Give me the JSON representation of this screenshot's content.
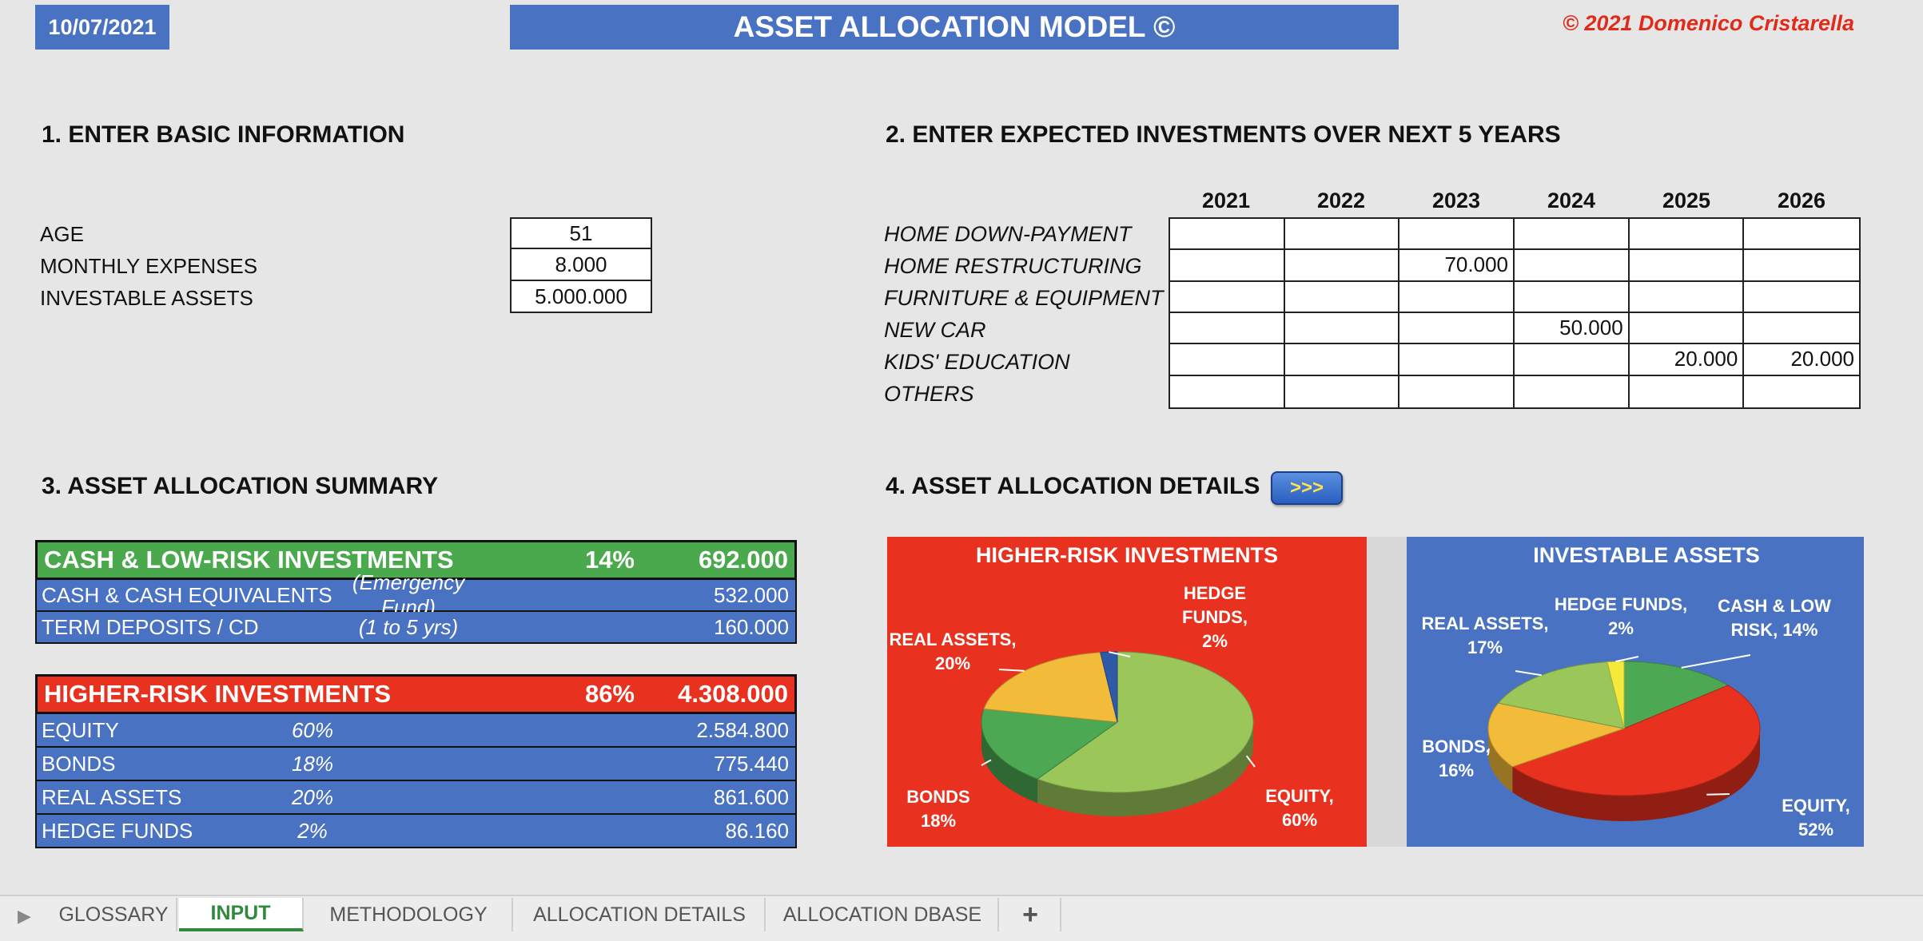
{
  "header": {
    "date": "10/07/2021",
    "title": "ASSET ALLOCATION MODEL ©",
    "copyright": "© 2021 Domenico Cristarella"
  },
  "section1": {
    "title": "1. ENTER BASIC INFORMATION",
    "fields": [
      {
        "label": "AGE",
        "value": "51"
      },
      {
        "label": "MONTHLY EXPENSES",
        "value": "8.000"
      },
      {
        "label": "INVESTABLE ASSETS",
        "value": "5.000.000"
      }
    ]
  },
  "section2": {
    "title": "2. ENTER EXPECTED INVESTMENTS OVER NEXT 5 YEARS",
    "years": [
      "2021",
      "2022",
      "2023",
      "2024",
      "2025",
      "2026"
    ],
    "rows": [
      {
        "label": "HOME DOWN-PAYMENT",
        "values": [
          "",
          "",
          "",
          "",
          "",
          ""
        ]
      },
      {
        "label": "HOME RESTRUCTURING",
        "values": [
          "",
          "",
          "70.000",
          "",
          "",
          ""
        ]
      },
      {
        "label": "FURNITURE & EQUIPMENT",
        "values": [
          "",
          "",
          "",
          "",
          "",
          ""
        ]
      },
      {
        "label": "NEW CAR",
        "values": [
          "",
          "",
          "",
          "50.000",
          "",
          ""
        ]
      },
      {
        "label": "KIDS' EDUCATION",
        "values": [
          "",
          "",
          "",
          "",
          "20.000",
          "20.000"
        ]
      },
      {
        "label": "OTHERS",
        "values": [
          "",
          "",
          "",
          "",
          "",
          ""
        ]
      }
    ]
  },
  "section3": {
    "title": "3.  ASSET ALLOCATION SUMMARY",
    "low_risk": {
      "label": "CASH & LOW-RISK INVESTMENTS",
      "pct": "14%",
      "amount": "692.000",
      "rows": [
        {
          "label": "CASH & CASH EQUIVALENTS",
          "note": "(Emergency Fund)",
          "amount": "532.000"
        },
        {
          "label": "TERM DEPOSITS / CD",
          "note": "(1 to 5 yrs)",
          "amount": "160.000"
        }
      ]
    },
    "high_risk": {
      "label": "HIGHER-RISK INVESTMENTS",
      "pct": "86%",
      "amount": "4.308.000",
      "rows": [
        {
          "label": "EQUITY",
          "note": "60%",
          "amount": "2.584.800"
        },
        {
          "label": "BONDS",
          "note": "18%",
          "amount": "775.440"
        },
        {
          "label": "REAL ASSETS",
          "note": "20%",
          "amount": "861.600"
        },
        {
          "label": "HEDGE FUNDS",
          "note": "2%",
          "amount": "86.160"
        }
      ]
    }
  },
  "section4": {
    "title": "4.  ASSET ALLOCATION DETAILS",
    "button_label": ">>>"
  },
  "chart_data": [
    {
      "type": "pie",
      "title": "HIGHER-RISK INVESTMENTS",
      "slices": [
        {
          "name": "EQUITY",
          "value": 60,
          "label": "EQUITY,|60%",
          "color": "#9bc75a"
        },
        {
          "name": "BONDS",
          "value": 18,
          "label": "BONDS|18%",
          "color": "#4da853"
        },
        {
          "name": "REAL ASSETS",
          "value": 20,
          "label": "REAL ASSETS,|20%",
          "color": "#f2bb3a"
        },
        {
          "name": "HEDGE FUNDS",
          "value": 2,
          "label": "HEDGE|FUNDS,|2%",
          "color": "#2e5aa8"
        }
      ],
      "background": "#e8311f"
    },
    {
      "type": "pie",
      "title": "INVESTABLE ASSETS",
      "slices": [
        {
          "name": "CASH & LOW RISK",
          "value": 14,
          "label": "CASH & LOW|RISK, 14%",
          "color": "#4da853"
        },
        {
          "name": "EQUITY",
          "value": 52,
          "label": "EQUITY,|52%",
          "color": "#e8311f"
        },
        {
          "name": "BONDS",
          "value": 16,
          "label": "BONDS,|16%",
          "color": "#f2bb3a"
        },
        {
          "name": "REAL ASSETS",
          "value": 17,
          "label": "REAL ASSETS,|17%",
          "color": "#9bc75a"
        },
        {
          "name": "HEDGE FUNDS",
          "value": 2,
          "label": "HEDGE FUNDS,|2%",
          "color": "#f4ea3c"
        }
      ],
      "background": "#4a72c2"
    }
  ],
  "tabs": [
    {
      "label": "GLOSSARY",
      "active": false
    },
    {
      "label": "INPUT",
      "active": true
    },
    {
      "label": "METHODOLOGY",
      "active": false
    },
    {
      "label": "ALLOCATION DETAILS",
      "active": false
    },
    {
      "label": "ALLOCATION DBASE",
      "active": false
    },
    {
      "label": "+",
      "active": false
    }
  ]
}
